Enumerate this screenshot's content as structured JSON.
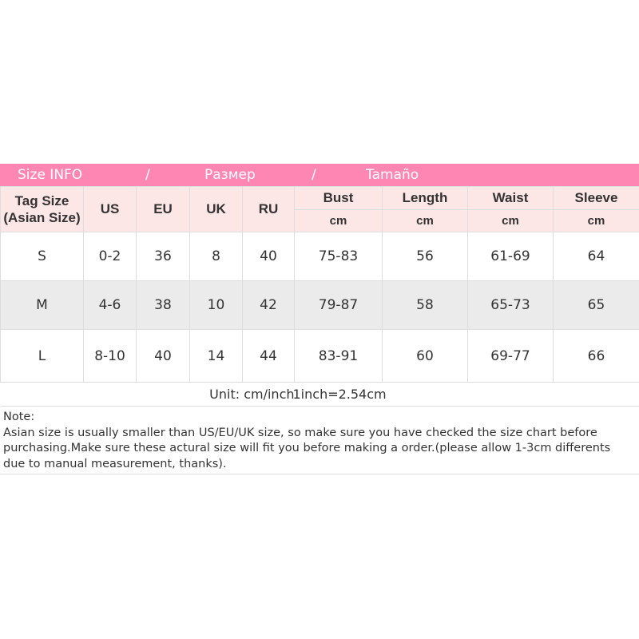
{
  "banner": {
    "part1": "Size INFO",
    "sep1": "/",
    "part2": "Размер",
    "sep2": "/",
    "part3": "Tamaño"
  },
  "headers": {
    "tag_size": "Tag Size",
    "tag_size_sub": "(Asian Size)",
    "us": "US",
    "eu": "EU",
    "uk": "UK",
    "ru": "RU",
    "bust": "Bust",
    "length": "Length",
    "waist": "Waist",
    "sleeve": "Sleeve",
    "unit": "cm"
  },
  "rows": [
    {
      "tag": "S",
      "us": "0-2",
      "eu": "36",
      "uk": "8",
      "ru": "40",
      "bust": "75-83",
      "length": "56",
      "waist": "61-69",
      "sleeve": "64"
    },
    {
      "tag": "M",
      "us": "4-6",
      "eu": "38",
      "uk": "10",
      "ru": "42",
      "bust": "79-87",
      "length": "58",
      "waist": "65-73",
      "sleeve": "65"
    },
    {
      "tag": "L",
      "us": "8-10",
      "eu": "40",
      "uk": "14",
      "ru": "44",
      "bust": "83-91",
      "length": "60",
      "waist": "69-77",
      "sleeve": "66"
    }
  ],
  "footer": {
    "unit": "Unit: cm/inch",
    "conversion": "1inch=2.54cm"
  },
  "note": {
    "title": "Note:",
    "text": "Asian size is usually smaller than US/EU/UK size, so make sure you have checked the size chart before purchasing.Make sure these actural size will fit you before making a order.(please allow 1-3cm differents due to manual measurement, thanks)."
  },
  "colors": {
    "banner": "#fd86b3",
    "header_bg": "#fde6e6",
    "alt_row": "#ebebeb"
  }
}
